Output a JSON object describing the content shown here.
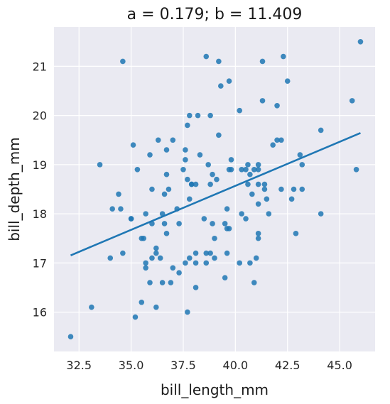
{
  "chart_data": {
    "type": "scatter",
    "title": "a = 0.179; b = 11.409",
    "xlabel": "bill_length_mm",
    "ylabel": "bill_depth_mm",
    "xlim": [
      31.3,
      46.7
    ],
    "ylim": [
      15.2,
      21.8
    ],
    "xticks": [
      32.5,
      35.0,
      37.5,
      40.0,
      42.5,
      45.0
    ],
    "xtick_labels": [
      "32.5",
      "35.0",
      "37.5",
      "40.0",
      "42.5",
      "45.0"
    ],
    "yticks": [
      16,
      17,
      18,
      19,
      20,
      21
    ],
    "ytick_labels": [
      "16",
      "17",
      "18",
      "19",
      "20",
      "21"
    ],
    "grid": true,
    "background": "#eaeaf2",
    "point_color": "#1f77b4",
    "line_color": "#1f77b4",
    "points": [
      [
        32.1,
        15.5
      ],
      [
        33.1,
        16.1
      ],
      [
        33.5,
        19.0
      ],
      [
        34.0,
        17.1
      ],
      [
        34.1,
        18.1
      ],
      [
        34.4,
        18.4
      ],
      [
        34.5,
        18.1
      ],
      [
        34.6,
        17.2
      ],
      [
        34.6,
        21.1
      ],
      [
        35.0,
        17.9
      ],
      [
        35.0,
        17.9
      ],
      [
        35.1,
        19.4
      ],
      [
        35.2,
        15.9
      ],
      [
        35.3,
        18.9
      ],
      [
        35.5,
        16.2
      ],
      [
        35.5,
        17.5
      ],
      [
        35.6,
        17.5
      ],
      [
        35.7,
        16.9
      ],
      [
        35.7,
        17.0
      ],
      [
        35.7,
        18.0
      ],
      [
        35.9,
        16.6
      ],
      [
        35.9,
        19.2
      ],
      [
        36.0,
        17.8
      ],
      [
        36.0,
        18.5
      ],
      [
        36.0,
        17.1
      ],
      [
        36.2,
        16.1
      ],
      [
        36.2,
        17.3
      ],
      [
        36.2,
        17.2
      ],
      [
        36.3,
        19.5
      ],
      [
        36.4,
        17.1
      ],
      [
        36.5,
        16.6
      ],
      [
        36.5,
        18.0
      ],
      [
        36.6,
        17.8
      ],
      [
        36.6,
        18.4
      ],
      [
        36.7,
        18.8
      ],
      [
        36.7,
        19.3
      ],
      [
        36.7,
        17.6
      ],
      [
        36.8,
        18.5
      ],
      [
        36.9,
        16.6
      ],
      [
        37.0,
        16.9
      ],
      [
        37.0,
        19.5
      ],
      [
        37.2,
        18.1
      ],
      [
        37.3,
        16.8
      ],
      [
        37.3,
        17.8
      ],
      [
        37.5,
        18.9
      ],
      [
        37.6,
        19.1
      ],
      [
        37.6,
        19.3
      ],
      [
        37.6,
        17.0
      ],
      [
        37.7,
        18.7
      ],
      [
        37.7,
        16.0
      ],
      [
        37.7,
        19.8
      ],
      [
        37.8,
        17.1
      ],
      [
        37.8,
        18.3
      ],
      [
        37.8,
        20.0
      ],
      [
        37.9,
        18.6
      ],
      [
        37.9,
        18.6
      ],
      [
        38.1,
        17.0
      ],
      [
        38.1,
        16.5
      ],
      [
        38.1,
        17.2
      ],
      [
        38.1,
        18.6
      ],
      [
        38.2,
        20.0
      ],
      [
        38.3,
        19.2
      ],
      [
        38.5,
        17.9
      ],
      [
        38.6,
        17.0
      ],
      [
        38.6,
        17.2
      ],
      [
        38.6,
        21.2
      ],
      [
        38.7,
        19.0
      ],
      [
        38.8,
        17.2
      ],
      [
        38.8,
        20.0
      ],
      [
        38.8,
        18.6
      ],
      [
        38.9,
        18.8
      ],
      [
        38.9,
        17.8
      ],
      [
        39.0,
        17.1
      ],
      [
        39.0,
        17.5
      ],
      [
        39.1,
        18.7
      ],
      [
        39.2,
        21.1
      ],
      [
        39.2,
        19.6
      ],
      [
        39.3,
        20.6
      ],
      [
        39.5,
        17.8
      ],
      [
        39.5,
        16.7
      ],
      [
        39.6,
        17.7
      ],
      [
        39.6,
        18.1
      ],
      [
        39.6,
        17.2
      ],
      [
        39.7,
        18.9
      ],
      [
        39.7,
        17.7
      ],
      [
        39.7,
        20.7
      ],
      [
        39.8,
        19.1
      ],
      [
        39.8,
        18.9
      ],
      [
        40.2,
        17.0
      ],
      [
        40.2,
        20.1
      ],
      [
        40.3,
        18.9
      ],
      [
        40.3,
        18.0
      ],
      [
        40.5,
        17.9
      ],
      [
        40.5,
        18.9
      ],
      [
        40.6,
        18.6
      ],
      [
        40.6,
        19.0
      ],
      [
        40.7,
        18.8
      ],
      [
        40.7,
        17.0
      ],
      [
        40.8,
        18.4
      ],
      [
        40.9,
        18.9
      ],
      [
        40.9,
        16.6
      ],
      [
        41.0,
        17.1
      ],
      [
        41.1,
        18.9
      ],
      [
        41.1,
        18.2
      ],
      [
        41.1,
        17.6
      ],
      [
        41.1,
        17.5
      ],
      [
        41.1,
        19.0
      ],
      [
        41.1,
        18.6
      ],
      [
        41.3,
        21.1
      ],
      [
        41.3,
        20.3
      ],
      [
        41.4,
        18.5
      ],
      [
        41.4,
        18.6
      ],
      [
        41.5,
        18.3
      ],
      [
        41.6,
        18.0
      ],
      [
        41.8,
        19.4
      ],
      [
        42.0,
        19.5
      ],
      [
        42.0,
        20.2
      ],
      [
        42.2,
        18.5
      ],
      [
        42.2,
        19.5
      ],
      [
        42.3,
        21.2
      ],
      [
        42.5,
        20.7
      ],
      [
        42.7,
        18.3
      ],
      [
        42.8,
        18.5
      ],
      [
        42.9,
        17.6
      ],
      [
        43.1,
        19.2
      ],
      [
        43.2,
        18.5
      ],
      [
        43.2,
        19.0
      ],
      [
        44.1,
        18.0
      ],
      [
        44.1,
        19.7
      ],
      [
        45.6,
        20.3
      ],
      [
        45.8,
        18.9
      ],
      [
        46.0,
        21.5
      ]
    ],
    "fit": {
      "a": 0.179,
      "b": 11.409,
      "x_range": [
        32.1,
        46.0
      ]
    }
  }
}
